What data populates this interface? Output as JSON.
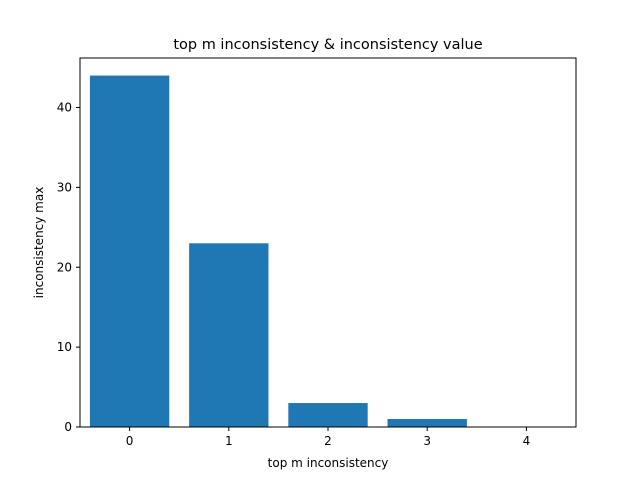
{
  "chart_data": {
    "type": "bar",
    "title": "top m inconsistency & inconsistency value",
    "xlabel": "top m inconsistency",
    "ylabel": "inconsistency max",
    "categories": [
      "0",
      "1",
      "2",
      "3",
      "4"
    ],
    "x": [
      0,
      1,
      2,
      3,
      4
    ],
    "values": [
      44,
      23,
      3,
      1,
      0
    ],
    "xlim": [
      -0.5,
      4.5
    ],
    "ylim": [
      0,
      46.2
    ],
    "yticks": [
      0,
      10,
      20,
      30,
      40
    ],
    "bar_width": 0.8,
    "bar_color": "#1f77b4",
    "grid": false,
    "legend": "none"
  }
}
